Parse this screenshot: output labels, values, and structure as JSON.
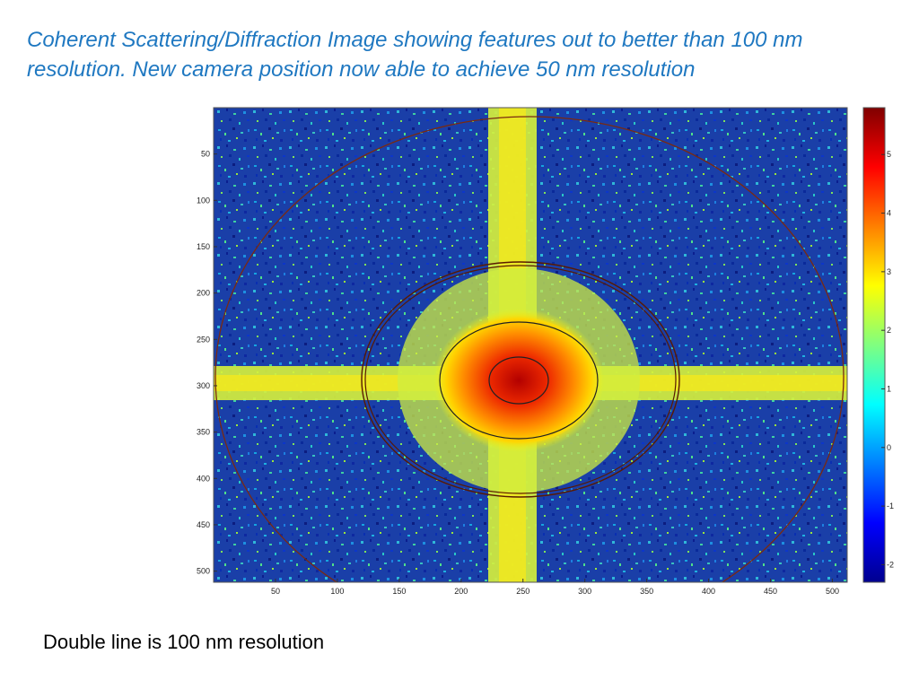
{
  "title": "Coherent Scattering/Diffraction Image showing features out to better than 100 nm resolution. New camera position now able to achieve 50 nm resolution",
  "caption": "Double line is 100 nm resolution",
  "image": {
    "type": "heatmap",
    "colormap": "jet",
    "x_ticks": [
      "50",
      "100",
      "150",
      "200",
      "250",
      "300",
      "350",
      "400",
      "450",
      "500"
    ],
    "y_ticks": [
      "50",
      "100",
      "150",
      "200",
      "250",
      "300",
      "350",
      "400",
      "450",
      "500"
    ],
    "x_range": [
      0,
      512
    ],
    "y_range": [
      0,
      512
    ],
    "colorbar_ticks": [
      "5",
      "4",
      "3",
      "2",
      "1",
      "0",
      "-1",
      "-2"
    ],
    "colorbar_range": [
      -2.3,
      5.8
    ]
  }
}
